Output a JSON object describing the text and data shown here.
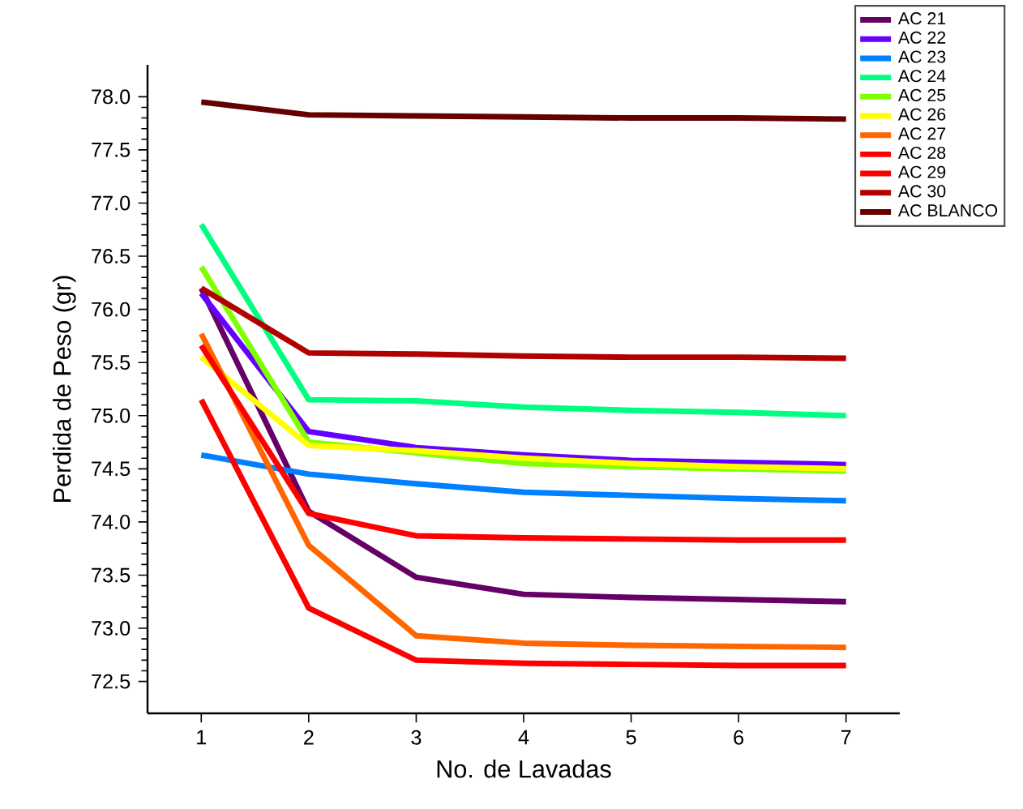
{
  "chart_data": {
    "type": "line",
    "xlabel": "No. de Lavadas",
    "ylabel": "Perdida de Peso (gr)",
    "x": [
      1,
      2,
      3,
      4,
      5,
      6,
      7
    ],
    "xlim": [
      0.5,
      7.5
    ],
    "xticks": [
      1,
      2,
      3,
      4,
      5,
      6,
      7
    ],
    "ylim": [
      72.2,
      78.3
    ],
    "yticks": [
      72.5,
      {
        "value": 73,
        "label": "73.0"
      },
      73.5,
      {
        "value": 74,
        "label": "74.0"
      },
      74.5,
      {
        "value": 75,
        "label": "75.0"
      },
      75.5,
      {
        "value": 76,
        "label": "76.0"
      },
      76.5,
      {
        "value": 77,
        "label": "77.0"
      },
      77.5,
      {
        "value": 78,
        "label": "78.0"
      }
    ],
    "grid": false,
    "legend": "top right",
    "marker": "none",
    "line_style": "solid",
    "series": [
      {
        "name": "AC 21",
        "color": "#660066",
        "values": [
          76.2,
          74.1,
          73.48,
          73.32,
          73.29,
          73.27,
          73.25
        ]
      },
      {
        "name": "AC 22",
        "color": "#6600ff",
        "values": [
          76.15,
          74.85,
          74.7,
          74.63,
          74.58,
          74.56,
          74.54
        ]
      },
      {
        "name": "AC 23",
        "color": "#0080ff",
        "values": [
          74.63,
          74.45,
          74.36,
          74.28,
          74.25,
          74.22,
          74.2
        ]
      },
      {
        "name": "AC 24",
        "color": "#00ff80",
        "values": [
          76.8,
          75.15,
          75.14,
          75.08,
          75.05,
          75.03,
          75.0
        ]
      },
      {
        "name": "AC 25",
        "color": "#80ff00",
        "values": [
          76.4,
          74.75,
          74.65,
          74.55,
          74.52,
          74.5,
          74.48
        ]
      },
      {
        "name": "AC 26",
        "color": "#ffff00",
        "values": [
          75.55,
          74.72,
          74.67,
          74.6,
          74.55,
          74.52,
          74.5
        ]
      },
      {
        "name": "AC 27",
        "color": "#ff6600",
        "values": [
          75.77,
          73.78,
          72.93,
          72.86,
          72.84,
          72.83,
          72.82
        ]
      },
      {
        "name": "AC 28",
        "color": "#ff0000",
        "values": [
          75.66,
          74.08,
          73.87,
          73.85,
          73.84,
          73.83,
          73.83
        ]
      },
      {
        "name": "AC 29",
        "color": "#ff0000",
        "values": [
          75.15,
          73.19,
          72.7,
          72.67,
          72.66,
          72.65,
          72.65
        ]
      },
      {
        "name": "AC 30",
        "color": "#b00000",
        "values": [
          76.2,
          75.59,
          75.58,
          75.56,
          75.55,
          75.55,
          75.54
        ]
      },
      {
        "name": "AC BLANCO",
        "color": "#660000",
        "values": [
          77.95,
          77.83,
          77.82,
          77.81,
          77.8,
          77.8,
          77.79
        ]
      }
    ]
  }
}
